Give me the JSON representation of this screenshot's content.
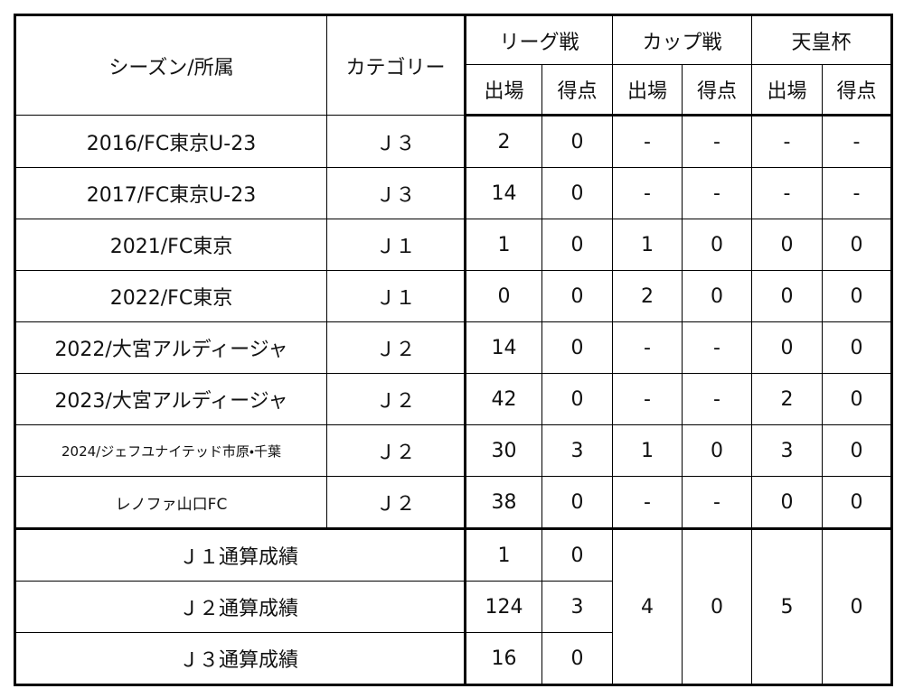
{
  "header": {
    "season": "シーズン/所属",
    "category": "カテゴリー",
    "groups": [
      "リーグ戦",
      "カップ戦",
      "天皇杯"
    ],
    "subheaders": [
      "出場",
      "得点",
      "出場",
      "得点",
      "出場",
      "得点"
    ]
  },
  "rows": [
    [
      "2016/FC東京U-23",
      "Ｊ３",
      "2",
      "0",
      "-",
      "-",
      "-",
      "-"
    ],
    [
      "2017/FC東京U-23",
      "Ｊ３",
      "14",
      "0",
      "-",
      "-",
      "-",
      "-"
    ],
    [
      "2021/FC東京",
      "Ｊ１",
      "1",
      "0",
      "1",
      "0",
      "0",
      "0"
    ],
    [
      "2022/FC東京",
      "Ｊ１",
      "0",
      "0",
      "2",
      "0",
      "0",
      "0"
    ],
    [
      "2022/大宮アルディージャ",
      "Ｊ２",
      "14",
      "0",
      "-",
      "-",
      "0",
      "0"
    ],
    [
      "2023/大宮アルディージャ",
      "Ｊ２",
      "42",
      "0",
      "-",
      "-",
      "2",
      "0"
    ],
    [
      "2024/ジェフユナイテッド市原・千葉",
      "Ｊ２",
      "30",
      "3",
      "1",
      "0",
      "3",
      "0"
    ],
    [
      "レノファ山口FC",
      "Ｊ２",
      "38",
      "0",
      "-",
      "-",
      "0",
      "0"
    ]
  ],
  "totals": {
    "rows": [
      [
        "Ｊ１通算成績",
        "1",
        "0"
      ],
      [
        "Ｊ２通算成績",
        "124",
        "3"
      ],
      [
        "Ｊ３通算成績",
        "16",
        "0"
      ]
    ],
    "cup": [
      "4",
      "0"
    ],
    "emperor": [
      "5",
      "0"
    ]
  }
}
